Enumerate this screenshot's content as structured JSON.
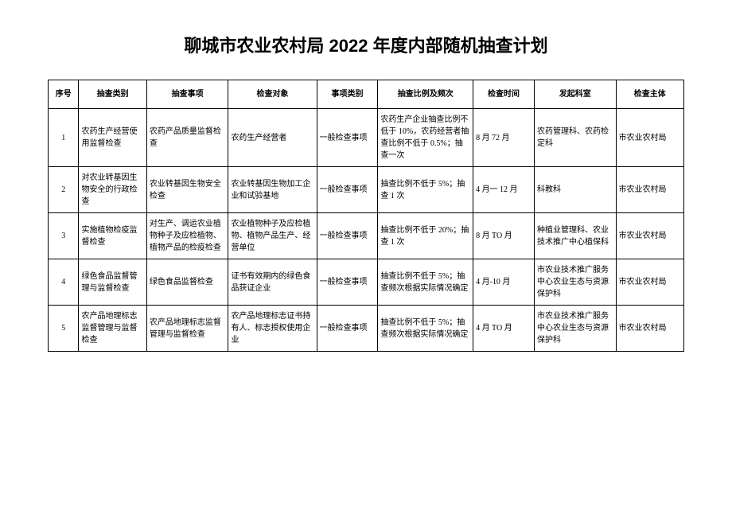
{
  "title": "聊城市农业农村局 2022 年度内部随机抽查计划",
  "headers": {
    "seq": "序号",
    "category": "抽查类别",
    "item": "抽查事项",
    "object": "检查对象",
    "type": "事项类别",
    "ratio": "抽查比例及频次",
    "time": "检查时间",
    "dept": "发起科室",
    "body": "检查主体"
  },
  "rows": [
    {
      "seq": "1",
      "category": "农药生产经营使用监督检查",
      "item": "农药产品质量监督检查",
      "object": "农药生产经营者",
      "type": "一般检查事项",
      "ratio": "农药生产企业抽查比例不低于 10%，农药经营者抽查比例不低于 0.5%；抽查一次",
      "time": "8 月 72 月",
      "dept": "农药管理科、农药检定科",
      "body": "市农业农村局"
    },
    {
      "seq": "2",
      "category": "对农业转基因生物安全的行政检查",
      "item": "农业转基因生物安全检查",
      "object": "农业转基因生物加工企业和试验基地",
      "type": "一般检查事项",
      "ratio": "抽查比例不低于 5%；抽查 1 次",
      "time": "4 月一 12 月",
      "dept": "科教科",
      "body": "市农业农村局"
    },
    {
      "seq": "3",
      "category": "实施植物检疫监督检查",
      "item": "对生产、调运农业植物种子及应检植物、植物产品的检疫检查",
      "object": "农业植物种子及应检植物、植物产品生产、经营单位",
      "type": "一般检查事项",
      "ratio": "抽查比例不低于 20%；抽查 1 次",
      "time": "8 月 TO 月",
      "dept": "种植业管理科、农业技术推广中心植保科",
      "body": "市农业农村局"
    },
    {
      "seq": "4",
      "category": "绿色食品监督管理与监督检查",
      "item": "绿色食品监督检查",
      "object": "证书有效期内的绿色食品获证企业",
      "type": "一般检查事项",
      "ratio": "抽查比例不低于 5%；抽查频次根据实际情况确定",
      "time": "4 月-10 月",
      "dept": "市农业技术推广服务中心农业生态与资源保护科",
      "body": "市农业农村局"
    },
    {
      "seq": "5",
      "category": "农产品地理标志监督管理与监督检查",
      "item": "农产品地理标志监督管理与监督检查",
      "object": "农产品地理标志证书持有人、标志授权使用企业",
      "type": "一般检查事项",
      "ratio": "抽查比例不低于 5%；抽查频次根据实际情况确定",
      "time": "4 月 TO 月",
      "dept": "市农业技术推广服务中心农业生态与资源保护科",
      "body": "市农业农村局"
    }
  ]
}
